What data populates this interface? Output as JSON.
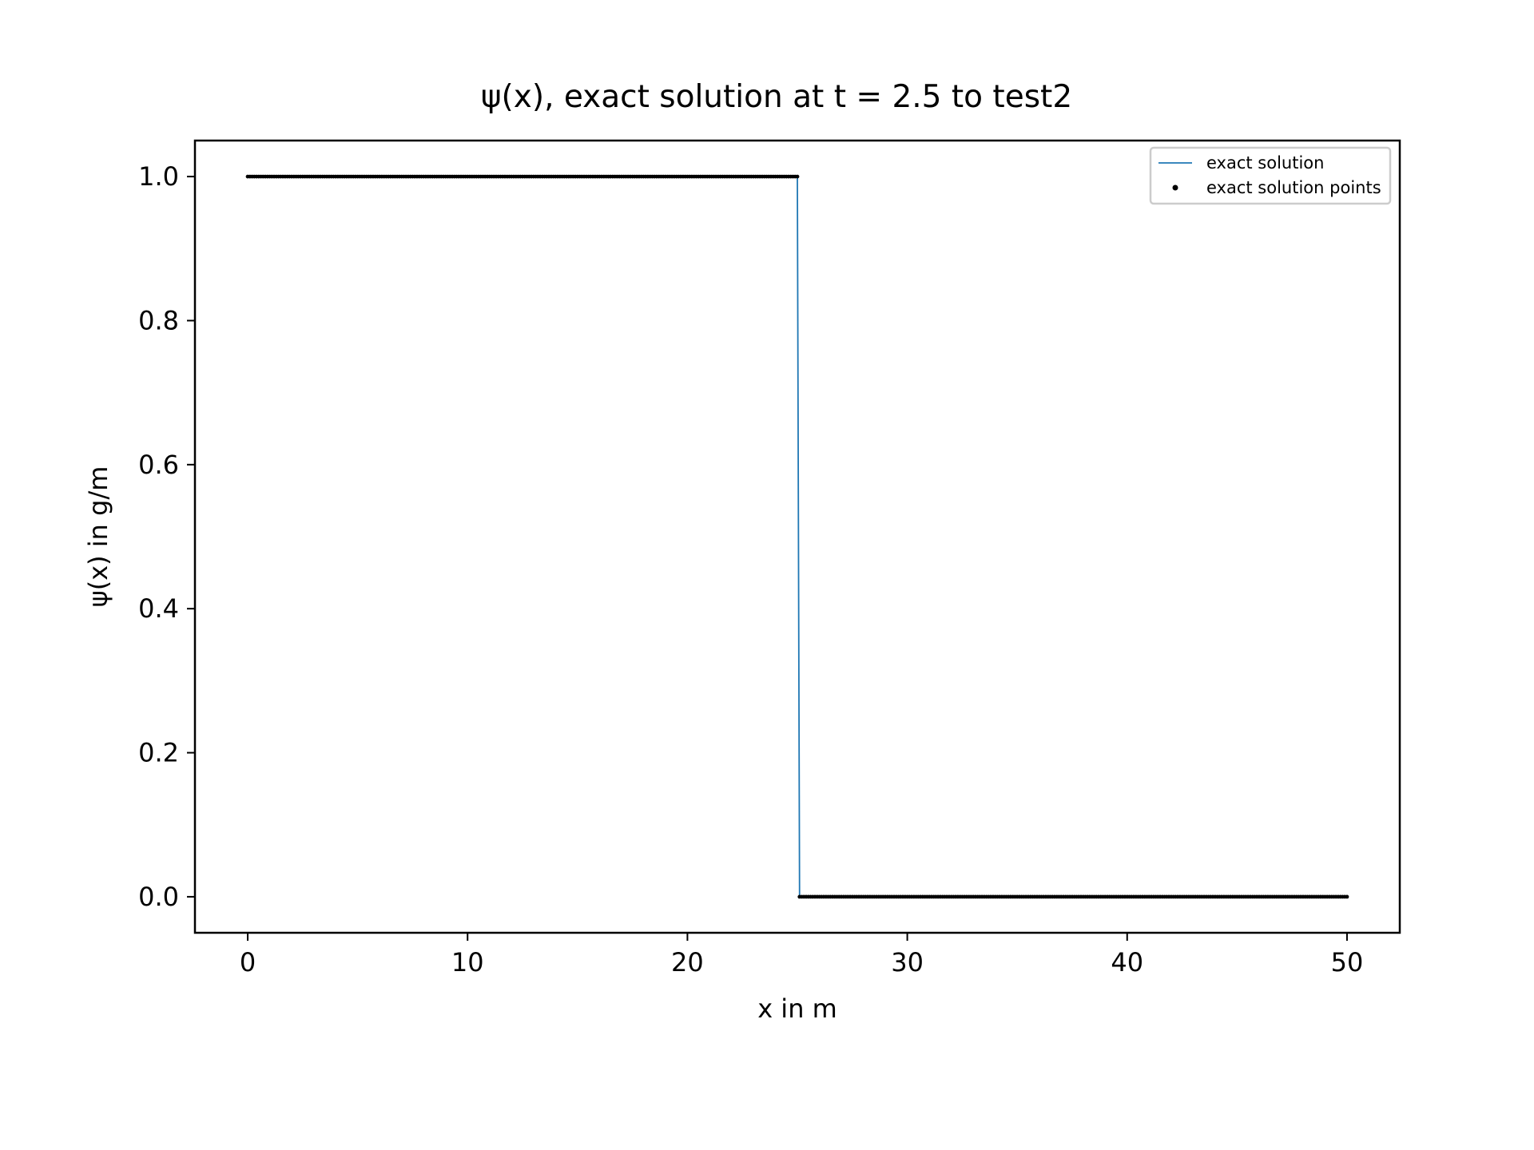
{
  "chart_data": {
    "type": "line",
    "title": "ψ(x), exact solution at t = 2.5 to test2",
    "xlabel": "x in m",
    "ylabel": "ψ(x) in g/m",
    "xlim": [
      -2.4,
      52.4
    ],
    "ylim": [
      -0.05,
      1.05
    ],
    "xticks": [
      0,
      10,
      20,
      30,
      40,
      50
    ],
    "xtick_labels": [
      "0",
      "10",
      "20",
      "30",
      "40",
      "50"
    ],
    "yticks": [
      0.0,
      0.2,
      0.4,
      0.6,
      0.8,
      1.0
    ],
    "ytick_labels": [
      "0.0",
      "0.2",
      "0.4",
      "0.6",
      "0.8",
      "1.0"
    ],
    "grid": false,
    "legend_position": "top-right",
    "series": [
      {
        "name": "exact solution",
        "kind": "line",
        "color": "#1f77b4",
        "x": [
          0,
          25.0,
          25.1,
          50
        ],
        "y": [
          1.0,
          1.0,
          0.0,
          0.0
        ]
      },
      {
        "name": "exact solution points",
        "kind": "scatter",
        "color": "#000000",
        "segments": [
          {
            "x_start": 0,
            "x_end": 25.0,
            "y": 1.0
          },
          {
            "x_start": 25.1,
            "x_end": 50,
            "y": 0.0
          }
        ],
        "step": 0.1
      }
    ]
  }
}
